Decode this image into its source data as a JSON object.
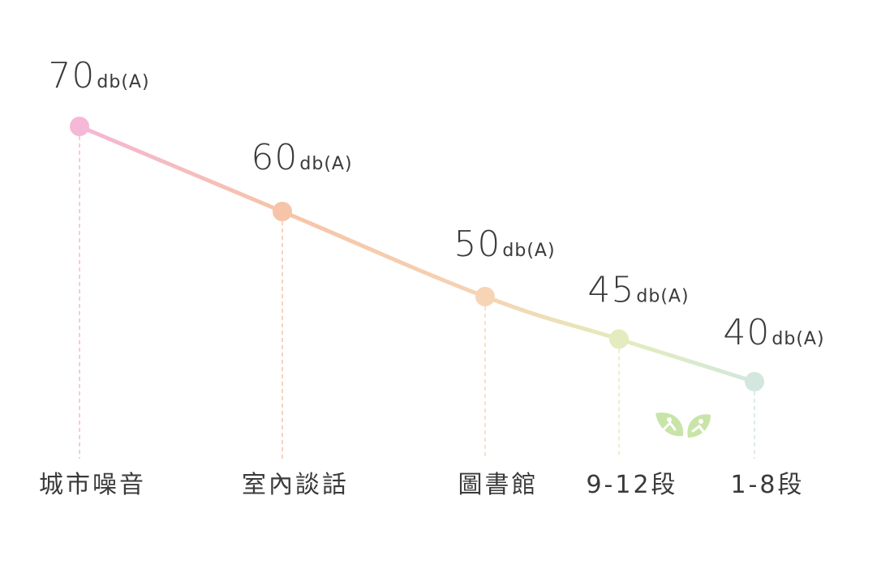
{
  "chart_data": {
    "type": "line",
    "categories": [
      "城市噪音",
      "室內談話",
      "圖書館",
      "9-12段",
      "1-8段"
    ],
    "values": [
      70,
      60,
      50,
      45,
      40
    ],
    "unit": "db(A)",
    "colors": [
      "#f5b8d6",
      "#f6c4a8",
      "#f6d5b6",
      "#e4ebbf",
      "#d3e7df"
    ],
    "ylim": [
      40,
      70
    ],
    "grid": false,
    "legend": "none",
    "title": "",
    "xlabel": "",
    "ylabel": ""
  },
  "decoration": {
    "icon": "leaf-bird-icon",
    "color": "#c7e3a7"
  }
}
